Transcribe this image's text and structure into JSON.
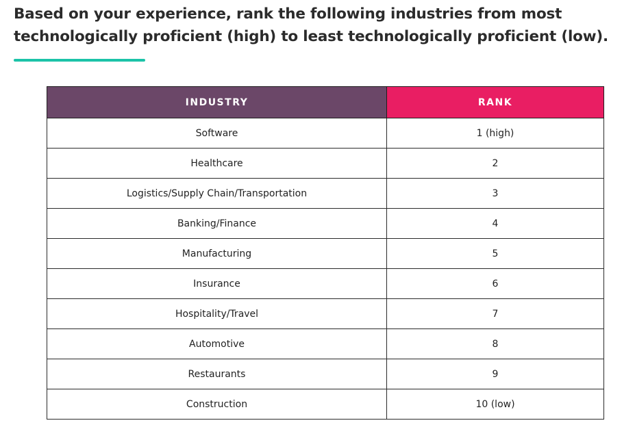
{
  "question": "Based on your experience, rank the following industries from most technologically proficient (high) to least technologically proficient (low).",
  "colors": {
    "accent_rule": "#1cc3a8",
    "industry_header_bg": "#6b4768",
    "rank_header_bg": "#e91e63",
    "header_text": "#ffffff"
  },
  "table": {
    "headers": {
      "industry": "INDUSTRY",
      "rank": "RANK"
    },
    "rows": [
      {
        "industry": "Software",
        "rank": "1 (high)"
      },
      {
        "industry": "Healthcare",
        "rank": "2"
      },
      {
        "industry": "Logistics/Supply Chain/Transportation",
        "rank": "3"
      },
      {
        "industry": "Banking/Finance",
        "rank": "4"
      },
      {
        "industry": "Manufacturing",
        "rank": "5"
      },
      {
        "industry": "Insurance",
        "rank": "6"
      },
      {
        "industry": "Hospitality/Travel",
        "rank": "7"
      },
      {
        "industry": "Automotive",
        "rank": "8"
      },
      {
        "industry": "Restaurants",
        "rank": "9"
      },
      {
        "industry": "Construction",
        "rank": "10 (low)"
      }
    ]
  }
}
